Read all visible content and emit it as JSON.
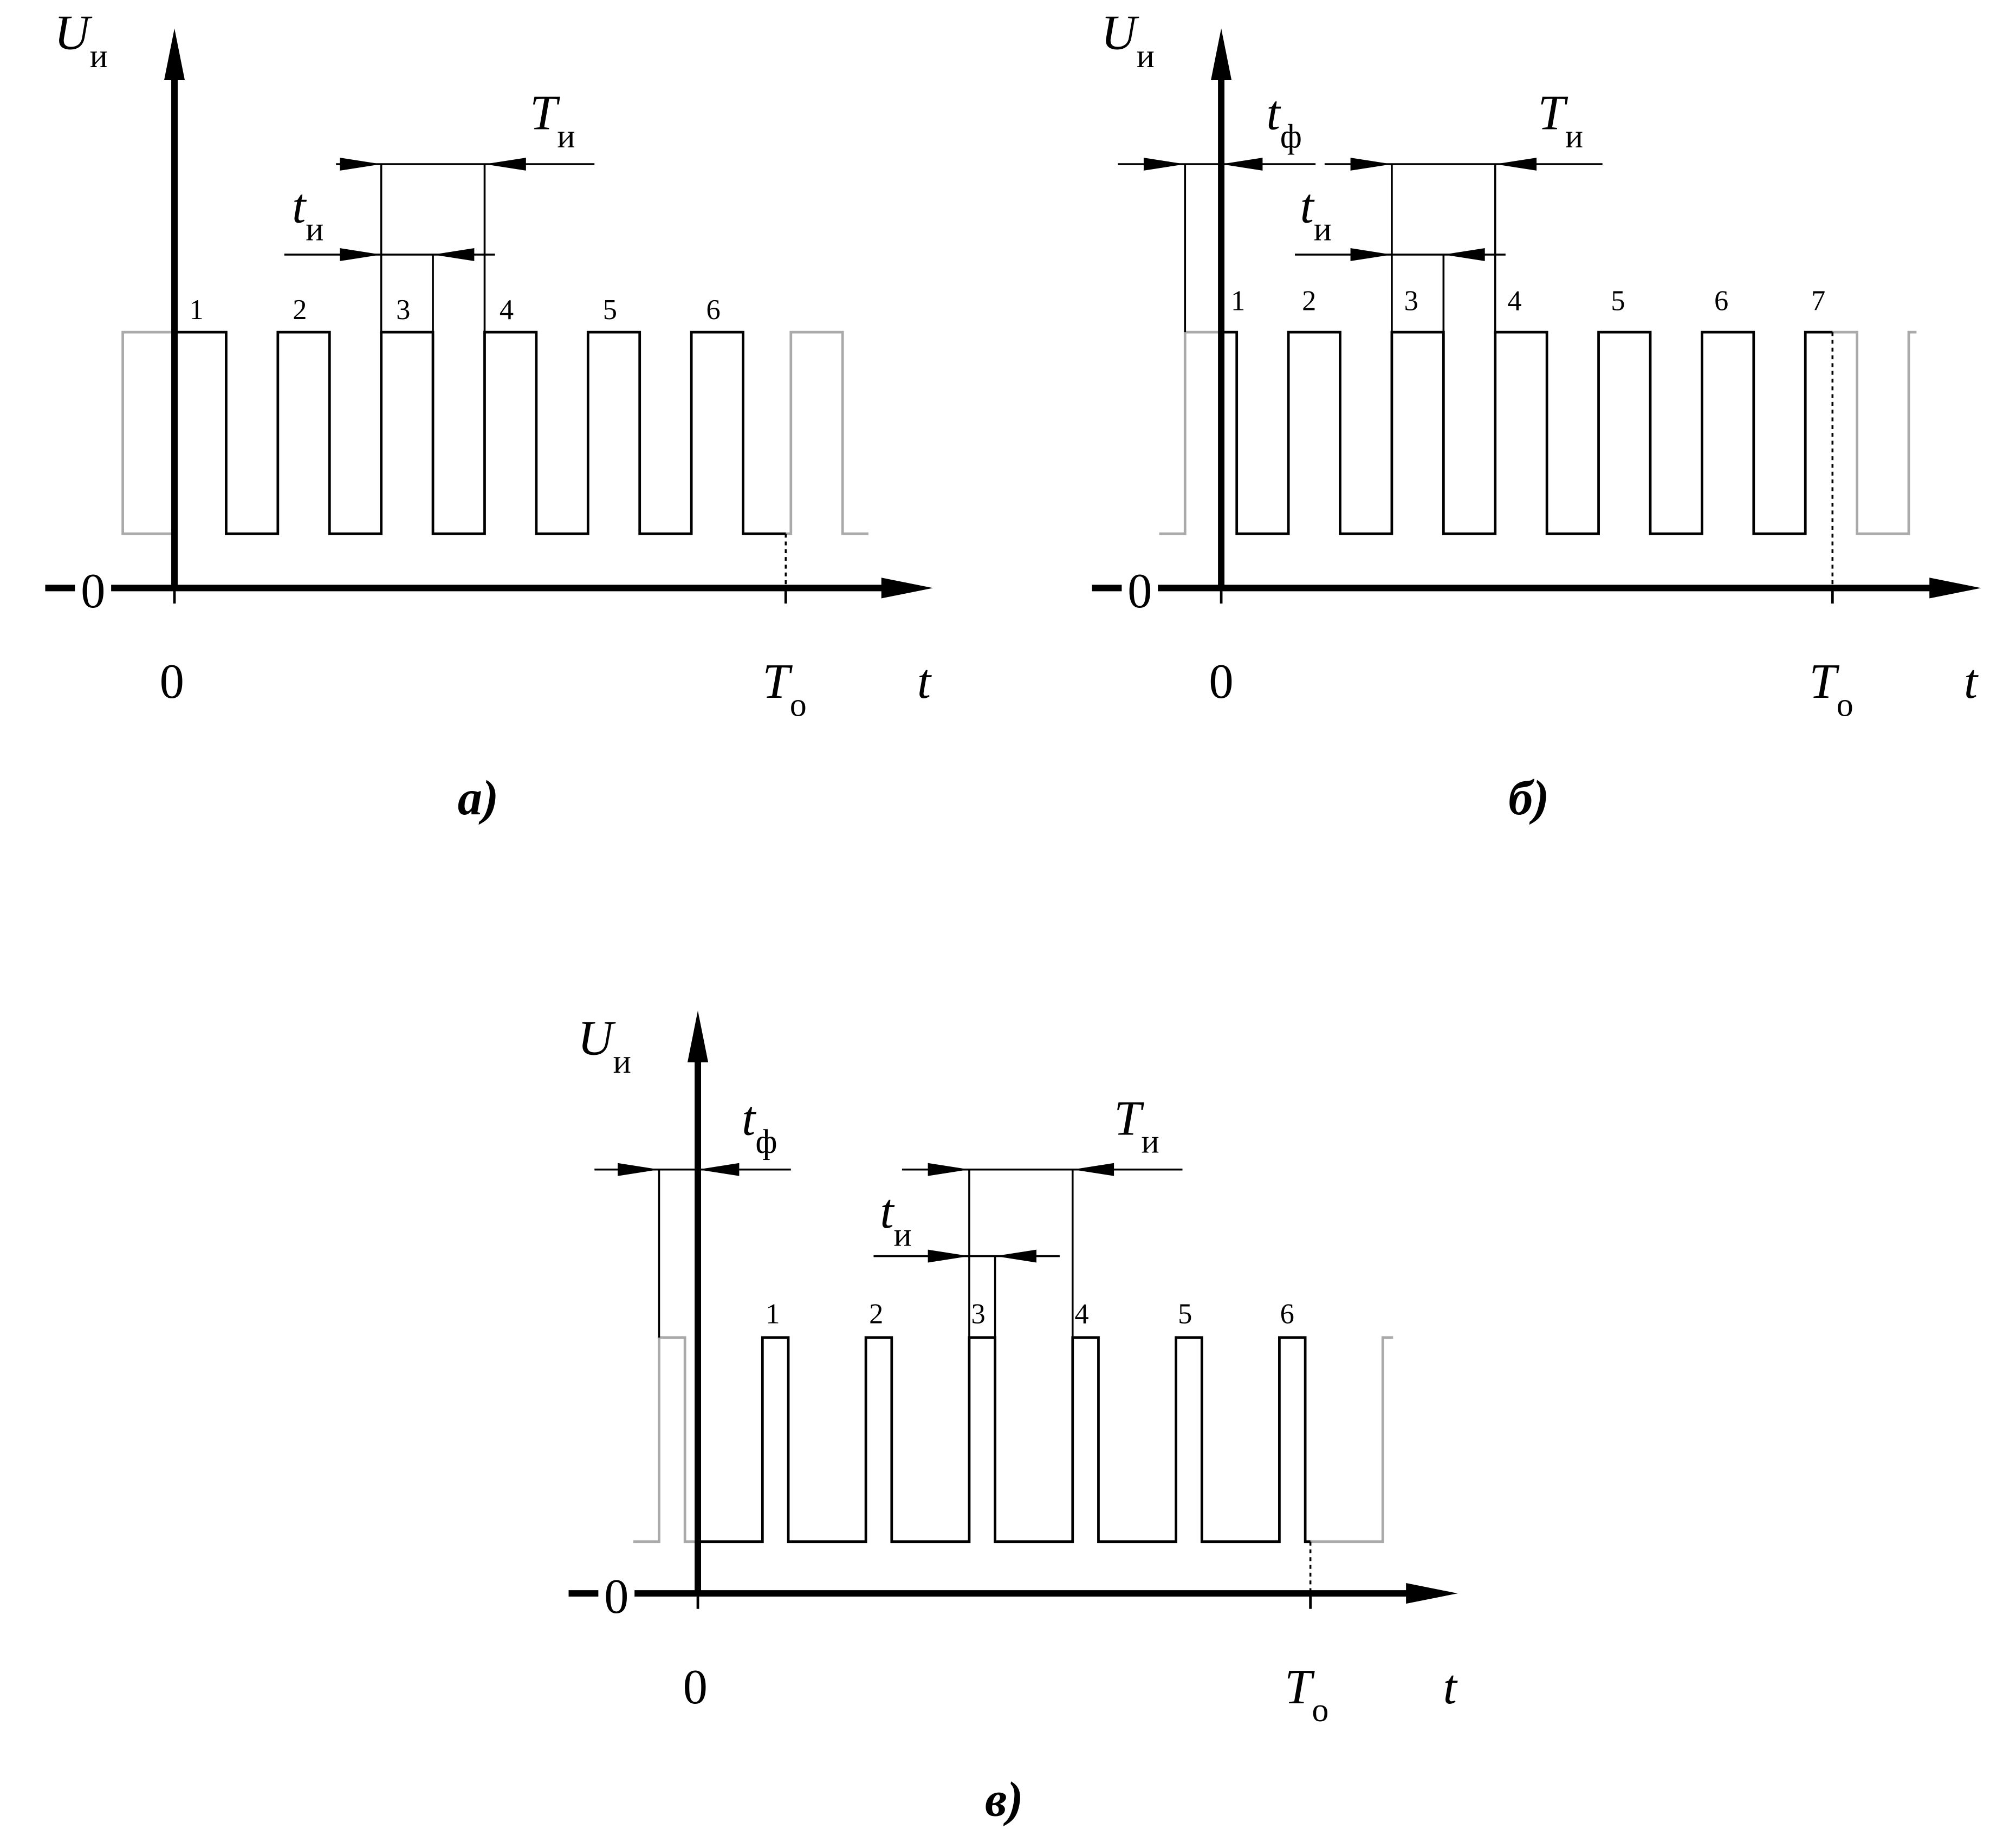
{
  "panels": [
    {
      "y_label": {
        "symbol": "U",
        "subscript": "и"
      },
      "period_label": {
        "symbol": "T",
        "subscript": "и"
      },
      "width_label": {
        "symbol": "t",
        "subscript": "и"
      },
      "pulse_numbers": [
        "1",
        "2",
        "3",
        "4",
        "5",
        "6"
      ],
      "axis_zero": "0",
      "origin_label": "0",
      "end_label": {
        "symbol": "T",
        "subscript": "о"
      },
      "x_label": "t",
      "caption": "а)"
    },
    {
      "y_label": {
        "symbol": "U",
        "subscript": "и"
      },
      "front_label": {
        "symbol": "t",
        "subscript": "ф"
      },
      "period_label": {
        "symbol": "T",
        "subscript": "и"
      },
      "width_label": {
        "symbol": "t",
        "subscript": "и"
      },
      "pulse_numbers": [
        "1",
        "2",
        "3",
        "4",
        "5",
        "6",
        "7"
      ],
      "axis_zero": "0",
      "origin_label": "0",
      "end_label": {
        "symbol": "T",
        "subscript": "о"
      },
      "x_label": "t",
      "caption": "б)"
    },
    {
      "y_label": {
        "symbol": "U",
        "subscript": "и"
      },
      "front_label": {
        "symbol": "t",
        "subscript": "ф"
      },
      "period_label": {
        "symbol": "T",
        "subscript": "и"
      },
      "width_label": {
        "symbol": "t",
        "subscript": "и"
      },
      "pulse_numbers": [
        "1",
        "2",
        "3",
        "4",
        "5",
        "6"
      ],
      "axis_zero": "0",
      "origin_label": "0",
      "end_label": {
        "symbol": "T",
        "subscript": "о"
      },
      "x_label": "t",
      "caption": "в)"
    }
  ]
}
